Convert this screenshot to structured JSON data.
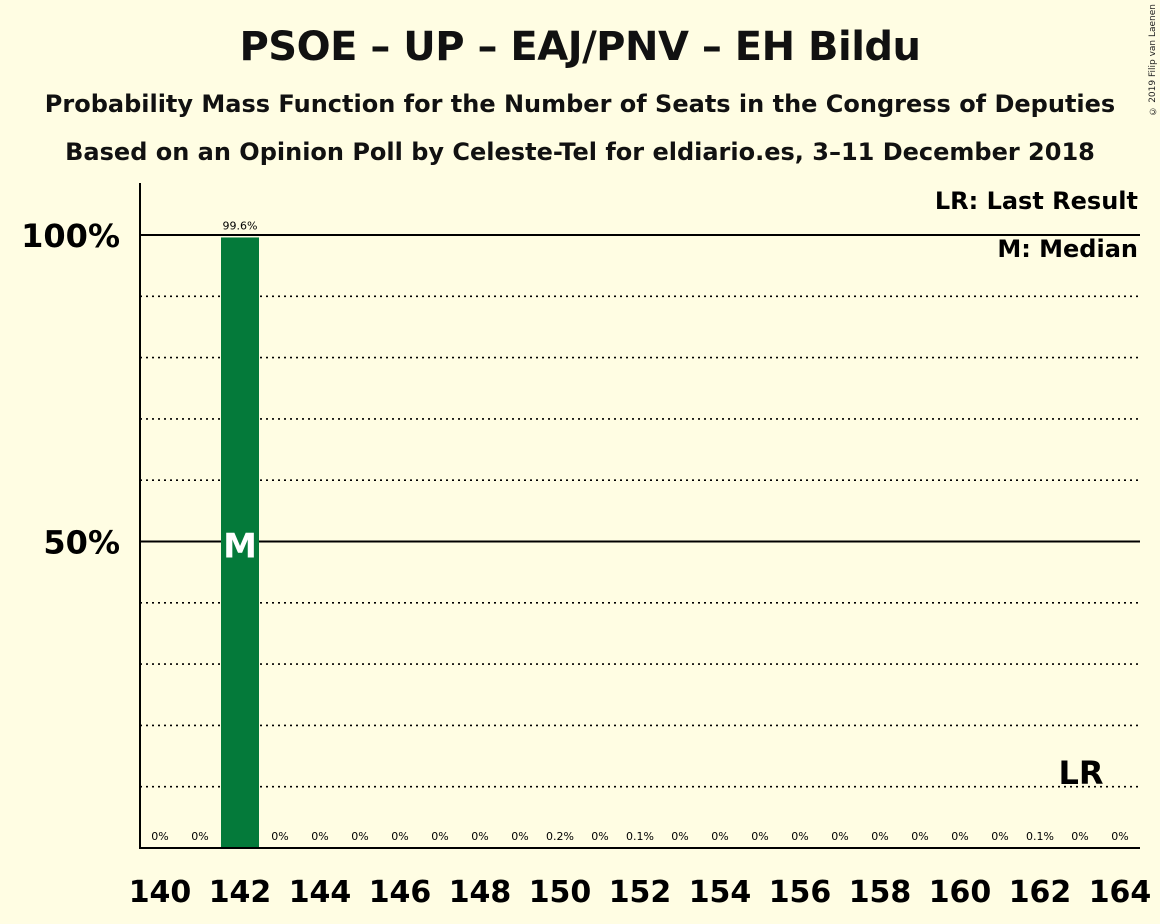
{
  "chart_data": {
    "type": "bar",
    "title": "PSOE – UP – EAJ/PNV – EH Bildu",
    "subtitle_1": "Probability Mass Function for the Number of Seats in the Congress of Deputies",
    "subtitle_2": "Based on an Opinion Poll by Celeste-Tel for eldiario.es, 3–11 December 2018",
    "copyright": "© 2019 Filip van Laenen",
    "x": [
      140,
      141,
      142,
      143,
      144,
      145,
      146,
      147,
      148,
      149,
      150,
      151,
      152,
      153,
      154,
      155,
      156,
      157,
      158,
      159,
      160,
      161,
      162,
      163,
      164
    ],
    "values": [
      0,
      0,
      99.6,
      0,
      0,
      0,
      0,
      0,
      0,
      0,
      0.2,
      0,
      0.1,
      0,
      0,
      0,
      0,
      0,
      0,
      0,
      0,
      0,
      0.1,
      0,
      0
    ],
    "value_labels": [
      "0%",
      "0%",
      "99.6%",
      "0%",
      "0%",
      "0%",
      "0%",
      "0%",
      "0%",
      "0%",
      "0.2%",
      "0%",
      "0.1%",
      "0%",
      "0%",
      "0%",
      "0%",
      "0%",
      "0%",
      "0%",
      "0%",
      "0%",
      "0.1%",
      "0%",
      "0%"
    ],
    "x_tick_labels": [
      "140",
      "142",
      "144",
      "146",
      "148",
      "150",
      "152",
      "154",
      "156",
      "158",
      "160",
      "162",
      "164"
    ],
    "y_tick_labels": [
      "100%",
      "50%"
    ],
    "ylim": [
      0,
      100
    ],
    "grid": true,
    "bar_color": "#047A3A",
    "median": 142,
    "median_label": "M",
    "last_result": 163,
    "last_result_label": "LR",
    "legend": [
      "LR: Last Result",
      "M: Median"
    ],
    "legend_placement": "top-right"
  }
}
